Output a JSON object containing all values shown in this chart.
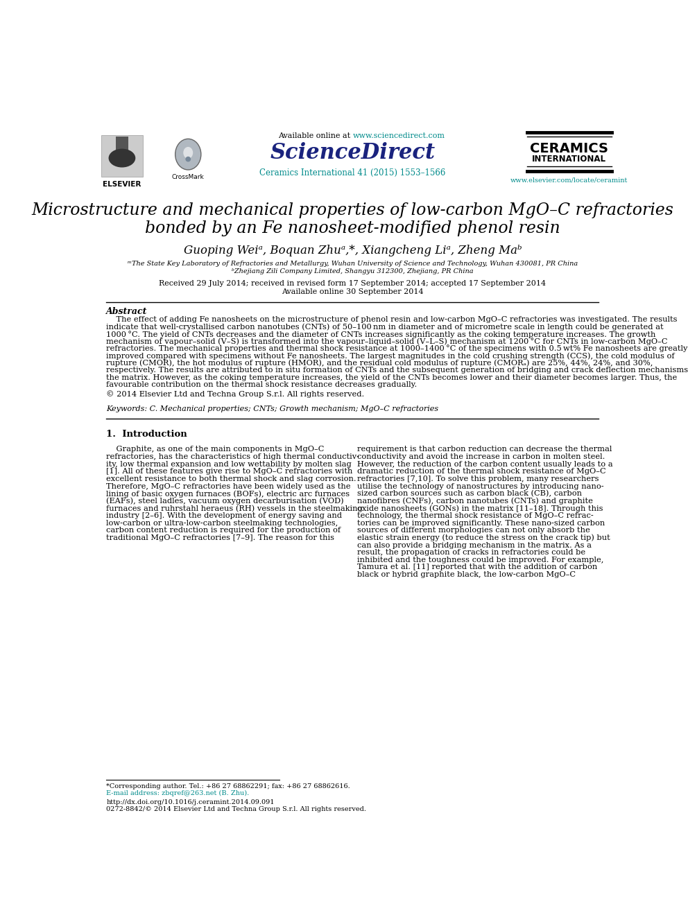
{
  "bg_color": "#ffffff",
  "title_line1": "Microstructure and mechanical properties of low-carbon MgO–C refractories",
  "title_line2": "bonded by an Fe nanosheet-modified phenol resin",
  "authors": "Guoping Weiᵃ, Boquan Zhuᵃ,*, Xiangcheng Liᵃ, Zheng Maᵇ",
  "affiliation_a": "ᵐThe State Key Laboratory of Refractories and Metallurgy, Wuhan University of Science and Technology, Wuhan 430081, PR China",
  "affiliation_b": "ᵇZhejiang Zili Company Limited, Shangyu 312300, Zhejiang, PR China",
  "received": "Received 29 July 2014; received in revised form 17 September 2014; accepted 17 September 2014",
  "available_online": "Available online 30 September 2014",
  "abstract_title": "Abstract",
  "copyright": "© 2014 Elsevier Ltd and Techna Group S.r.l. All rights reserved.",
  "keywords": "Keywords: C. Mechanical properties; CNTs; Growth mechanism; MgO–C refractories",
  "section1_title": "1.  Introduction",
  "journal_name": "Ceramics International 41 (2015) 1553–1566",
  "ceramics_line1": "CERAMICS",
  "ceramics_line2": "INTERNATIONAL",
  "website_url": "www.elsevier.com/locate/ceramint",
  "available_online_text": "Available online at ",
  "sciencedirect_url": "www.sciencedirect.com",
  "sciencedirect_label": "ScienceDirect",
  "elsevier_label": "ELSEVIER",
  "crossmark_label": "CrossMark",
  "intro_col1": [
    "    Graphite, as one of the main components in MgO–C",
    "refractories, has the characteristics of high thermal conductiv-",
    "ity, low thermal expansion and low wettability by molten slag",
    "[1]. All of these features give rise to MgO–C refractories with",
    "excellent resistance to both thermal shock and slag corrosion.",
    "Therefore, MgO–C refractories have been widely used as the",
    "lining of basic oxygen furnaces (BOFs), electric arc furnaces",
    "(EAFs), steel ladles, vacuum oxygen decarburisation (VOD)",
    "furnaces and ruhrstahl heraeus (RH) vessels in the steelmaking",
    "industry [2–6]. With the development of energy saving and",
    "low-carbon or ultra-low-carbon steelmaking technologies,",
    "carbon content reduction is required for the production of",
    "traditional MgO–C refractories [7–9]. The reason for this"
  ],
  "intro_col2": [
    "requirement is that carbon reduction can decrease the thermal",
    "conductivity and avoid the increase in carbon in molten steel.",
    "However, the reduction of the carbon content usually leads to a",
    "dramatic reduction of the thermal shock resistance of MgO–C",
    "refractories [7,10]. To solve this problem, many researchers",
    "utilise the technology of nanostructures by introducing nano-",
    "sized carbon sources such as carbon black (CB), carbon",
    "nanofibres (CNFs), carbon nanotubes (CNTs) and graphite",
    "oxide nanosheets (GONs) in the matrix [11–18]. Through this",
    "technology, the thermal shock resistance of MgO–C refrac-",
    "tories can be improved significantly. These nano-sized carbon",
    "sources of different morphologies can not only absorb the",
    "elastic strain energy (to reduce the stress on the crack tip) but",
    "can also provide a bridging mechanism in the matrix. As a",
    "result, the propagation of cracks in refractories could be",
    "inhibited and the toughness could be improved. For example,",
    "Tamura et al. [11] reported that with the addition of carbon",
    "black or hybrid graphite black, the low-carbon MgO–C"
  ],
  "abstract_lines": [
    "    The effect of adding Fe nanosheets on the microstructure of phenol resin and low-carbon MgO–C refractories was investigated. The results",
    "indicate that well-crystallised carbon nanotubes (CNTs) of 50–100 nm in diameter and of micrometre scale in length could be generated at",
    "1000 °C. The yield of CNTs decreases and the diameter of CNTs increases significantly as the coking temperature increases. The growth",
    "mechanism of vapour–solid (V–S) is transformed into the vapour–liquid–solid (V–L–S) mechanism at 1200 °C for CNTs in low-carbon MgO–C",
    "refractories. The mechanical properties and thermal shock resistance at 1000–1400 °C of the specimens with 0.5 wt% Fe nanosheets are greatly",
    "improved compared with specimens without Fe nanosheets. The largest magnitudes in the cold crushing strength (CCS), the cold modulus of",
    "rupture (CMOR), the hot modulus of rupture (HMOR), and the residual cold modulus of rupture (CMORₐ) are 25%, 44%, 24%, and 30%,",
    "respectively. The results are attributed to in situ formation of CNTs and the subsequent generation of bridging and crack deflection mechanisms in",
    "the matrix. However, as the coking temperature increases, the yield of the CNTs becomes lower and their diameter becomes larger. Thus, the",
    "favourable contribution on the thermal shock resistance decreases gradually."
  ],
  "footer_left1": "*Corresponding author. Tel.: +86 27 68862291; fax: +86 27 68862616.",
  "footer_left2": "E-mail address: zbqref@263.net (B. Zhu).",
  "footer_url": "http://dx.doi.org/10.1016/j.ceramint.2014.09.091",
  "footer_copy": "0272-8842/© 2014 Elsevier Ltd and Techna Group S.r.l. All rights reserved.",
  "link_color": "#008B8B",
  "sd_blue": "#1a237e",
  "text_color": "#000000"
}
